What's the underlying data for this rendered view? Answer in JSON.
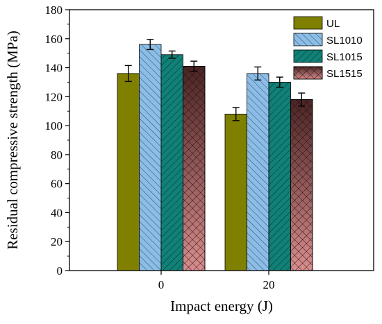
{
  "chart_data": {
    "type": "bar",
    "xlabel": "Impact energy (J)",
    "ylabel": "Residual compressive strength (MPa)",
    "categories": [
      "0",
      "20"
    ],
    "ylim": [
      0,
      180
    ],
    "yticks": [
      0,
      20,
      40,
      60,
      80,
      100,
      120,
      140,
      160,
      180
    ],
    "grid": false,
    "legend_position": "top-right",
    "series": [
      {
        "name": "UL",
        "values": [
          136,
          108
        ],
        "errors": [
          5.5,
          4.5
        ],
        "color": "#808000",
        "pattern": "solid"
      },
      {
        "name": "SL1010",
        "values": [
          156,
          136
        ],
        "errors": [
          3.5,
          4.5
        ],
        "color": "#8cbde6",
        "pattern": "diagonal-hatch"
      },
      {
        "name": "SL1015",
        "values": [
          149,
          130
        ],
        "errors": [
          2.5,
          3.5
        ],
        "color": "#118076",
        "pattern": "back-diagonal-hatch"
      },
      {
        "name": "SL1515",
        "values": [
          141,
          118
        ],
        "errors": [
          3.5,
          4.5
        ],
        "color_top": "#4a2424",
        "color_bottom": "#d98d8d",
        "pattern": "crosshatch-gradient"
      }
    ]
  }
}
